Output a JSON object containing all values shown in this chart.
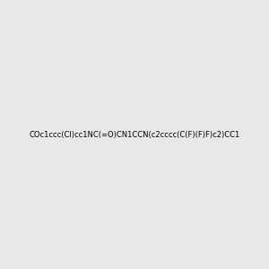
{
  "smiles": "COc1ccc(Cl)cc1NC(=O)CN1CCN(c2cccc(C(F)(F)F)c2)CC1",
  "title": "",
  "background_color": "#e8e8e8",
  "figsize": [
    3.0,
    3.0
  ],
  "dpi": 100,
  "atom_colors": {
    "N": "#0000ff",
    "O": "#ff0000",
    "F": "#ff00ff",
    "Cl": "#00aa00",
    "C": "#000000",
    "H": "#888888"
  }
}
